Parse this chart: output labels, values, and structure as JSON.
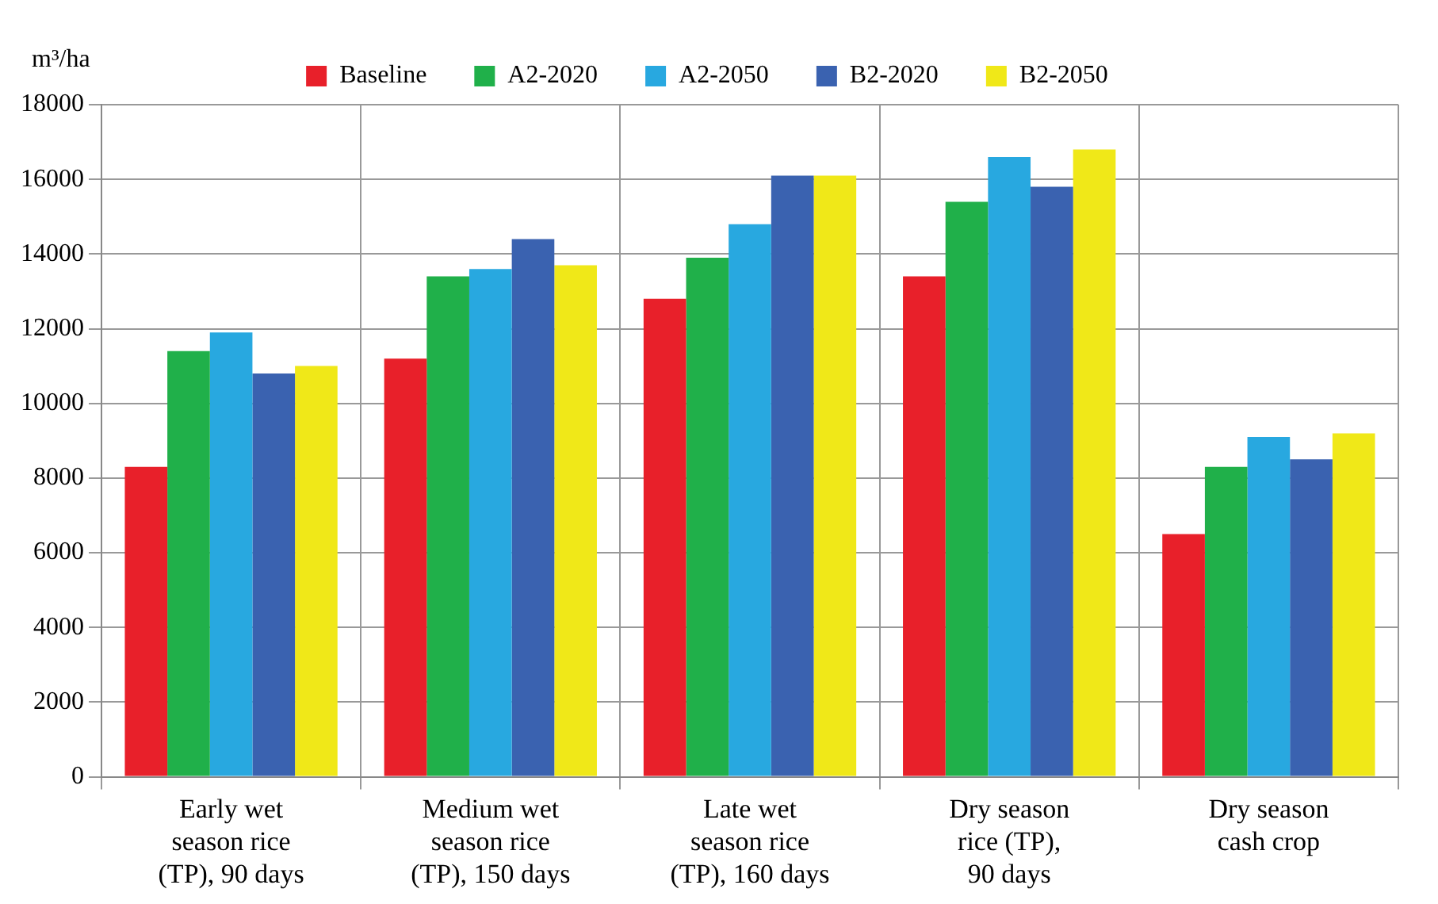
{
  "chart_data": {
    "type": "bar",
    "ylabel": "m³/ha",
    "categories": [
      "Early wet\nseason rice\n(TP), 90 days",
      "Medium wet\nseason rice\n(TP), 150 days",
      "Late wet\nseason rice\n(TP), 160 days",
      "Dry season\nrice (TP),\n90 days",
      "Dry season\ncash crop"
    ],
    "series": [
      {
        "name": "Baseline",
        "color": "#e8202a",
        "values": [
          8300,
          11200,
          12800,
          13400,
          6500
        ]
      },
      {
        "name": "A2-2020",
        "color": "#20b04a",
        "values": [
          11400,
          13400,
          13900,
          15400,
          8300
        ]
      },
      {
        "name": "A2-2050",
        "color": "#28a8e0",
        "values": [
          11900,
          13600,
          14800,
          16600,
          9100
        ]
      },
      {
        "name": "B2-2020",
        "color": "#3a62b0",
        "values": [
          10800,
          14400,
          16100,
          15800,
          8500
        ]
      },
      {
        "name": "B2-2050",
        "color": "#f0e818",
        "values": [
          11000,
          13700,
          16100,
          16800,
          9200
        ]
      }
    ],
    "ylim": [
      0,
      18000
    ],
    "yticks": [
      0,
      2000,
      4000,
      6000,
      8000,
      10000,
      12000,
      14000,
      16000,
      18000
    ],
    "grid": true,
    "legend": "top"
  }
}
